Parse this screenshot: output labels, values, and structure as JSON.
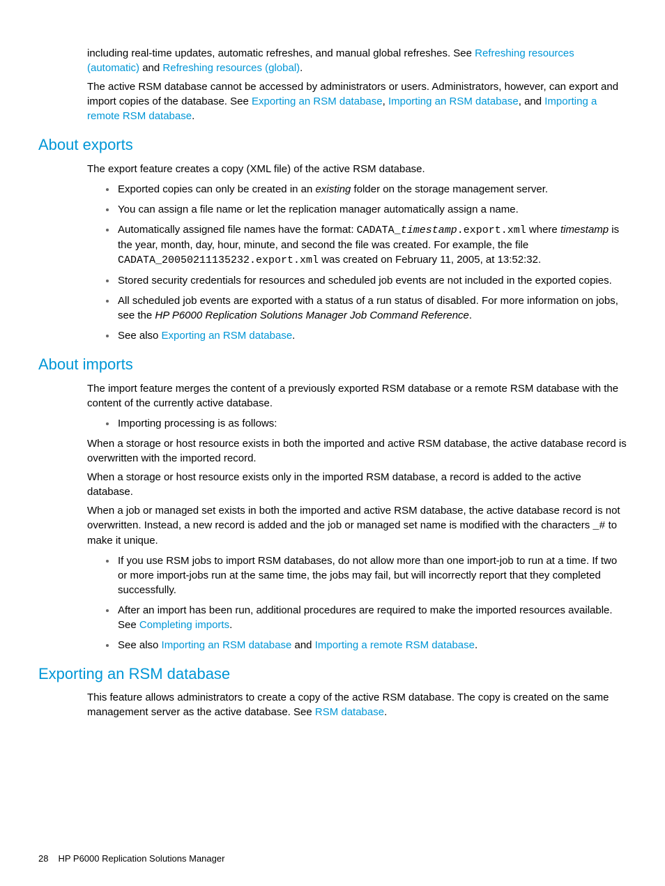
{
  "colors": {
    "heading_link": "#0096d6",
    "body_text": "#000000",
    "bullet": "#666666",
    "background": "#ffffff"
  },
  "typography": {
    "heading_fontsize": 22,
    "body_fontsize": 15,
    "footer_fontsize": 13,
    "mono_family": "Courier New"
  },
  "intro": {
    "p1_a": "including real-time updates, automatic refreshes, and manual global refreshes. See ",
    "p1_link1": "Refreshing resources (automatic)",
    "p1_b": " and ",
    "p1_link2": "Refreshing resources (global)",
    "p1_c": ".",
    "p2_a": "The active RSM database cannot be accessed by administrators or users. Administrators, however, can export and import copies of the database. See ",
    "p2_link1": "Exporting an RSM database",
    "p2_b": ", ",
    "p2_link2": "Importing an RSM database",
    "p2_c": ", and ",
    "p2_link3": "Importing a remote RSM database",
    "p2_d": "."
  },
  "exports": {
    "heading": "About exports",
    "intro": "The export feature creates a copy (XML file) of the active RSM database.",
    "b1_a": "Exported copies can only be created in an ",
    "b1_ital": "existing",
    "b1_b": " folder on the storage management server.",
    "b2": "You can assign a file name or let the replication manager automatically assign a name.",
    "b3_a": "Automatically assigned file names have the format: ",
    "b3_code1a": "CADATA_",
    "b3_code1b": "timestamp",
    "b3_code1c": ".export.xml",
    "b3_b": " where ",
    "b3_ital": "timestamp",
    "b3_c": " is the year, month, day, hour, minute, and second the file was created. For example, the file ",
    "b3_code2": "CADATA_20050211135232.export.xml",
    "b3_d": " was created on February 11, 2005, at 13:52:32.",
    "b4": "Stored security credentials for resources and scheduled job events are not included in the exported copies.",
    "b5_a": "All scheduled job events are exported with a status of a run status of disabled. For more information on jobs, see the ",
    "b5_ital": "HP P6000 Replication Solutions Manager Job Command Reference",
    "b5_b": ".",
    "b6_a": "See also ",
    "b6_link": "Exporting an RSM database",
    "b6_b": "."
  },
  "imports": {
    "heading": "About imports",
    "intro": "The import feature merges the content of a previously exported RSM database or a remote RSM database with the content of the currently active database.",
    "b1": "Importing processing is as follows:",
    "p1": "When a storage or host resource exists in both the imported and active RSM database, the active database record is overwritten with the imported record.",
    "p2": "When a storage or host resource exists only in the imported RSM database, a record is added to the active database.",
    "p3_a": "When a job or managed set exists in both the imported and active RSM database, the active database record is not overwritten. Instead, a new record is added and the job or managed set name is modified with the characters ",
    "p3_code": "_#",
    "p3_b": " to make it unique.",
    "b2": "If you use RSM jobs to import RSM databases, do not allow more than one import-job to run at a time. If two or more import-jobs run at the same time, the jobs may fail, but will incorrectly report that they completed successfully.",
    "b3_a": "After an import has been run, additional procedures are required to make the imported resources available. See ",
    "b3_link": "Completing imports",
    "b3_b": ".",
    "b4_a": "See also ",
    "b4_link1": "Importing an RSM database",
    "b4_b": " and ",
    "b4_link2": "Importing a remote RSM database",
    "b4_c": "."
  },
  "exporting": {
    "heading": "Exporting an RSM database",
    "p1_a": "This feature allows administrators to create a copy of the active RSM database. The copy is created on the same management server as the active database. See ",
    "p1_link": "RSM database",
    "p1_b": "."
  },
  "footer": {
    "page": "28",
    "title": "HP P6000 Replication Solutions Manager"
  }
}
